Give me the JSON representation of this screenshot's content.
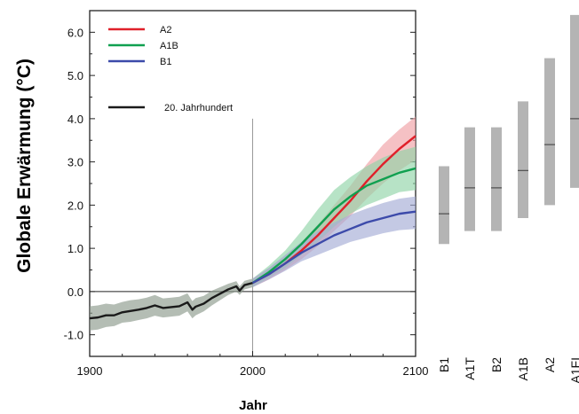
{
  "chart_data": [
    {
      "type": "line",
      "xlabel": "Jahr",
      "ylabel": "Globale Erwärmung (°C)",
      "xlim": [
        1900,
        2100
      ],
      "ylim": [
        -1.5,
        6.5
      ],
      "xticks": [
        1900,
        2000,
        2100
      ],
      "xtick_labels": [
        "1900",
        "2000",
        "2100"
      ],
      "yticks": [
        -1.0,
        0.0,
        1.0,
        2.0,
        3.0,
        4.0,
        5.0,
        6.0
      ],
      "ytick_labels": [
        "-1.0",
        "0.0",
        "1.0",
        "2.0",
        "3.0",
        "4.0",
        "5.0",
        "6.0"
      ],
      "reference_line_x": 2000,
      "legend_position": "top-left",
      "series": [
        {
          "name": "20. Jahrhundert",
          "color": "#1a1a1a",
          "band_color": "#8c9a8c",
          "x": [
            1900,
            1905,
            1910,
            1915,
            1920,
            1925,
            1930,
            1935,
            1940,
            1945,
            1950,
            1955,
            1960,
            1963,
            1965,
            1970,
            1975,
            1980,
            1985,
            1990,
            1992,
            1995,
            2000
          ],
          "y": [
            -0.62,
            -0.6,
            -0.55,
            -0.55,
            -0.48,
            -0.45,
            -0.42,
            -0.38,
            -0.32,
            -0.38,
            -0.36,
            -0.34,
            -0.25,
            -0.42,
            -0.35,
            -0.28,
            -0.15,
            -0.05,
            0.05,
            0.12,
            0.02,
            0.15,
            0.2
          ],
          "lower": [
            -0.9,
            -0.88,
            -0.82,
            -0.8,
            -0.72,
            -0.7,
            -0.66,
            -0.62,
            -0.56,
            -0.6,
            -0.58,
            -0.56,
            -0.46,
            -0.62,
            -0.55,
            -0.46,
            -0.32,
            -0.2,
            -0.08,
            0.0,
            -0.08,
            0.05,
            0.1
          ],
          "upper": [
            -0.34,
            -0.32,
            -0.28,
            -0.3,
            -0.24,
            -0.2,
            -0.18,
            -0.14,
            -0.08,
            -0.16,
            -0.14,
            -0.12,
            -0.04,
            -0.22,
            -0.15,
            -0.1,
            0.02,
            0.1,
            0.18,
            0.24,
            0.12,
            0.25,
            0.3
          ]
        },
        {
          "name": "A2",
          "color": "#e0202a",
          "band_color": "#f0a0a4",
          "x": [
            2000,
            2010,
            2020,
            2030,
            2040,
            2050,
            2060,
            2070,
            2080,
            2090,
            2100
          ],
          "y": [
            0.2,
            0.4,
            0.65,
            0.95,
            1.3,
            1.7,
            2.1,
            2.55,
            2.95,
            3.3,
            3.6
          ],
          "lower": [
            0.1,
            0.28,
            0.5,
            0.75,
            1.05,
            1.4,
            1.75,
            2.15,
            2.5,
            2.8,
            3.05
          ],
          "upper": [
            0.3,
            0.55,
            0.82,
            1.15,
            1.55,
            2.0,
            2.45,
            2.95,
            3.4,
            3.75,
            4.05
          ]
        },
        {
          "name": "A1B",
          "color": "#10a050",
          "band_color": "#90d4a8",
          "x": [
            2000,
            2010,
            2020,
            2030,
            2040,
            2050,
            2060,
            2070,
            2080,
            2090,
            2100
          ],
          "y": [
            0.2,
            0.45,
            0.75,
            1.1,
            1.5,
            1.9,
            2.2,
            2.45,
            2.6,
            2.75,
            2.85
          ],
          "lower": [
            0.1,
            0.32,
            0.55,
            0.85,
            1.15,
            1.5,
            1.8,
            2.0,
            2.15,
            2.3,
            2.35
          ],
          "upper": [
            0.3,
            0.6,
            0.95,
            1.4,
            1.9,
            2.35,
            2.65,
            2.9,
            3.1,
            3.25,
            3.35
          ]
        },
        {
          "name": "B1",
          "color": "#3c4aaa",
          "band_color": "#a4acd6",
          "x": [
            2000,
            2010,
            2020,
            2030,
            2040,
            2050,
            2060,
            2070,
            2080,
            2090,
            2100
          ],
          "y": [
            0.2,
            0.4,
            0.65,
            0.9,
            1.1,
            1.3,
            1.45,
            1.6,
            1.7,
            1.8,
            1.85
          ],
          "lower": [
            0.1,
            0.28,
            0.48,
            0.7,
            0.85,
            1.0,
            1.15,
            1.25,
            1.35,
            1.42,
            1.45
          ],
          "upper": [
            0.3,
            0.55,
            0.85,
            1.15,
            1.4,
            1.6,
            1.78,
            1.92,
            2.05,
            2.15,
            2.2
          ]
        }
      ]
    },
    {
      "type": "bar",
      "note_kind": "range bars with best estimate",
      "categories": [
        "B1",
        "A1T",
        "B2",
        "A1B",
        "A2",
        "A1FI"
      ],
      "visible_labels": [
        "B1",
        "A1T",
        "B2",
        "A1B",
        "A2",
        "A1FI"
      ],
      "low": [
        1.1,
        1.4,
        1.4,
        1.7,
        2.0,
        2.4
      ],
      "high": [
        2.9,
        3.8,
        3.8,
        4.4,
        5.4,
        6.4
      ],
      "best": [
        1.8,
        2.4,
        2.4,
        2.8,
        3.4,
        4.0
      ],
      "bar_color": "#b4b4b4",
      "best_color": "#555555"
    }
  ]
}
